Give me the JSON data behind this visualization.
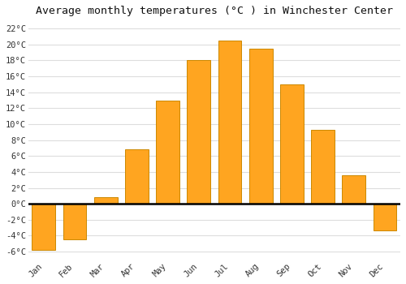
{
  "months": [
    "Jan",
    "Feb",
    "Mar",
    "Apr",
    "May",
    "Jun",
    "Jul",
    "Aug",
    "Sep",
    "Oct",
    "Nov",
    "Dec"
  ],
  "values": [
    -5.8,
    -4.5,
    0.8,
    6.8,
    13.0,
    18.0,
    20.5,
    19.5,
    15.0,
    9.3,
    3.6,
    -3.3
  ],
  "bar_color": "#FFA520",
  "bar_edge_color": "#CC8800",
  "title": "Average monthly temperatures (°C ) in Winchester Center",
  "ylim": [
    -7,
    23
  ],
  "yticks": [
    -6,
    -4,
    -2,
    0,
    2,
    4,
    6,
    8,
    10,
    12,
    14,
    16,
    18,
    20,
    22
  ],
  "ytick_labels": [
    "-6°C",
    "-4°C",
    "-2°C",
    "0°C",
    "2°C",
    "4°C",
    "6°C",
    "8°C",
    "10°C",
    "12°C",
    "14°C",
    "16°C",
    "18°C",
    "20°C",
    "22°C"
  ],
  "background_color": "#ffffff",
  "grid_color": "#dddddd",
  "title_fontsize": 9.5,
  "tick_fontsize": 7.5,
  "bar_width": 0.75
}
